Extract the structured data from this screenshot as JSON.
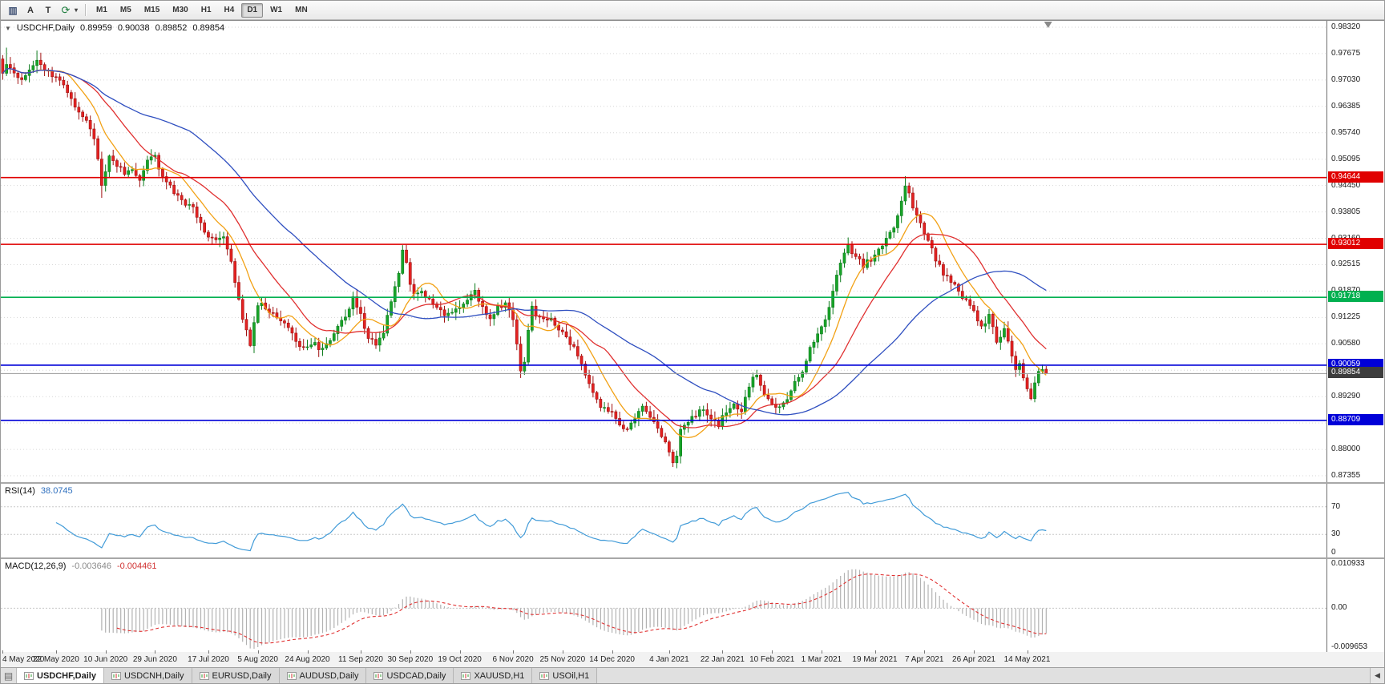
{
  "toolbar": {
    "tools": [
      {
        "name": "chart-bars-icon",
        "glyph": "▥"
      },
      {
        "name": "annotation-a-icon",
        "glyph": "A"
      },
      {
        "name": "text-tool-icon",
        "glyph": "T"
      },
      {
        "name": "refresh-icon",
        "glyph": "⟳"
      },
      {
        "name": "dropdown-caret-icon",
        "glyph": "▾"
      }
    ],
    "timeframes": [
      {
        "label": "M1",
        "active": false
      },
      {
        "label": "M5",
        "active": false
      },
      {
        "label": "M15",
        "active": false
      },
      {
        "label": "M30",
        "active": false
      },
      {
        "label": "H1",
        "active": false
      },
      {
        "label": "H4",
        "active": false
      },
      {
        "label": "D1",
        "active": true
      },
      {
        "label": "W1",
        "active": false
      },
      {
        "label": "MN",
        "active": false
      }
    ]
  },
  "chart": {
    "header": {
      "collapse_glyph": "▼",
      "symbol": "USDCHF,Daily",
      "open": "0.89959",
      "high": "0.90038",
      "low": "0.89852",
      "close": "0.89854"
    }
  },
  "rsi_header": {
    "title": "RSI(14)",
    "value": "38.0745"
  },
  "macd_header": {
    "title": "MACD(12,26,9)",
    "value_main": "-0.003646",
    "value_signal": "-0.004461"
  },
  "tabbar": {
    "menu_glyph": "▤",
    "scroll_left_glyph": "◀"
  },
  "tabs": [
    {
      "label": "USDCHF,Daily",
      "active": true
    },
    {
      "label": "USDCNH,Daily",
      "active": false
    },
    {
      "label": "EURUSD,Daily",
      "active": false
    },
    {
      "label": "AUDUSD,Daily",
      "active": false
    },
    {
      "label": "USDCAD,Daily",
      "active": false
    },
    {
      "label": "XAUUSD,H1",
      "active": false
    },
    {
      "label": "USOil,H1",
      "active": false
    }
  ],
  "chart_data": {
    "type": "candlestick",
    "symbol": "USDCHF",
    "timeframe": "Daily",
    "ohlc_display": {
      "open": 0.89959,
      "high": 0.90038,
      "low": 0.89852,
      "close": 0.89854
    },
    "bid": 0.89854,
    "y_axis": {
      "min": 0.87355,
      "max": 0.9832,
      "ticks": [
        "0.98320",
        "0.97675",
        "0.97030",
        "0.96385",
        "0.95740",
        "0.95095",
        "0.94450",
        "0.93805",
        "0.93160",
        "0.92515",
        "0.91870",
        "0.91225",
        "0.90580",
        "0.89935",
        "0.89290",
        "0.88645",
        "0.88000",
        "0.87355"
      ]
    },
    "x_axis": {
      "bars_total": 275,
      "plot_fraction": 0.79,
      "labels": [
        {
          "i": 0,
          "t": "4 May 2020"
        },
        {
          "i": 14,
          "t": "22 May 2020"
        },
        {
          "i": 27,
          "t": "10 Jun 2020"
        },
        {
          "i": 40,
          "t": "29 Jun 2020"
        },
        {
          "i": 54,
          "t": "17 Jul 2020"
        },
        {
          "i": 67,
          "t": "5 Aug 2020"
        },
        {
          "i": 80,
          "t": "24 Aug 2020"
        },
        {
          "i": 94,
          "t": "11 Sep 2020"
        },
        {
          "i": 107,
          "t": "30 Sep 2020"
        },
        {
          "i": 120,
          "t": "19 Oct 2020"
        },
        {
          "i": 134,
          "t": "6 Nov 2020"
        },
        {
          "i": 147,
          "t": "25 Nov 2020"
        },
        {
          "i": 160,
          "t": "14 Dec 2020"
        },
        {
          "i": 175,
          "t": "4 Jan 2021"
        },
        {
          "i": 189,
          "t": "22 Jan 2021"
        },
        {
          "i": 202,
          "t": "10 Feb 2021"
        },
        {
          "i": 215,
          "t": "1 Mar 2021"
        },
        {
          "i": 229,
          "t": "19 Mar 2021"
        },
        {
          "i": 242,
          "t": "7 Apr 2021"
        },
        {
          "i": 255,
          "t": "26 Apr 2021"
        },
        {
          "i": 269,
          "t": "14 May 2021"
        }
      ]
    },
    "price_path": [
      [
        0,
        0.9718
      ],
      [
        1,
        0.9745
      ],
      [
        3,
        0.9722
      ],
      [
        5,
        0.9705
      ],
      [
        7,
        0.9732
      ],
      [
        9,
        0.9752
      ],
      [
        11,
        0.9728
      ],
      [
        13,
        0.971
      ],
      [
        14,
        0.9716
      ],
      [
        16,
        0.9692
      ],
      [
        18,
        0.9652
      ],
      [
        20,
        0.9625
      ],
      [
        22,
        0.961
      ],
      [
        24,
        0.9562
      ],
      [
        26,
        0.9448
      ],
      [
        27,
        0.9478
      ],
      [
        28,
        0.9512
      ],
      [
        30,
        0.9496
      ],
      [
        32,
        0.9476
      ],
      [
        34,
        0.9482
      ],
      [
        36,
        0.946
      ],
      [
        38,
        0.9506
      ],
      [
        40,
        0.9516
      ],
      [
        42,
        0.9466
      ],
      [
        44,
        0.944
      ],
      [
        46,
        0.9416
      ],
      [
        48,
        0.94
      ],
      [
        50,
        0.9392
      ],
      [
        52,
        0.9352
      ],
      [
        54,
        0.9322
      ],
      [
        56,
        0.931
      ],
      [
        58,
        0.9316
      ],
      [
        60,
        0.9256
      ],
      [
        61,
        0.9212
      ],
      [
        62,
        0.917
      ],
      [
        63,
        0.9122
      ],
      [
        64,
        0.9086
      ],
      [
        65,
        0.906
      ],
      [
        66,
        0.9106
      ],
      [
        67,
        0.9146
      ],
      [
        68,
        0.916
      ],
      [
        70,
        0.9136
      ],
      [
        72,
        0.9128
      ],
      [
        74,
        0.911
      ],
      [
        76,
        0.908
      ],
      [
        78,
        0.9056
      ],
      [
        80,
        0.9046
      ],
      [
        82,
        0.906
      ],
      [
        83,
        0.9038
      ],
      [
        85,
        0.9058
      ],
      [
        87,
        0.9082
      ],
      [
        89,
        0.9112
      ],
      [
        91,
        0.9142
      ],
      [
        92,
        0.9168
      ],
      [
        94,
        0.9128
      ],
      [
        96,
        0.9072
      ],
      [
        98,
        0.9056
      ],
      [
        100,
        0.9088
      ],
      [
        102,
        0.9158
      ],
      [
        104,
        0.9232
      ],
      [
        105,
        0.9284
      ],
      [
        106,
        0.9258
      ],
      [
        107,
        0.9208
      ],
      [
        108,
        0.9174
      ],
      [
        110,
        0.9188
      ],
      [
        112,
        0.9164
      ],
      [
        114,
        0.9148
      ],
      [
        116,
        0.9126
      ],
      [
        118,
        0.9134
      ],
      [
        120,
        0.9148
      ],
      [
        122,
        0.9166
      ],
      [
        124,
        0.9184
      ],
      [
        126,
        0.9148
      ],
      [
        128,
        0.9118
      ],
      [
        130,
        0.9146
      ],
      [
        132,
        0.9156
      ],
      [
        134,
        0.9118
      ],
      [
        135,
        0.9058
      ],
      [
        136,
        0.8992
      ],
      [
        137,
        0.9018
      ],
      [
        138,
        0.9088
      ],
      [
        139,
        0.9148
      ],
      [
        140,
        0.913
      ],
      [
        142,
        0.9116
      ],
      [
        144,
        0.912
      ],
      [
        146,
        0.9098
      ],
      [
        148,
        0.9072
      ],
      [
        150,
        0.905
      ],
      [
        152,
        0.9012
      ],
      [
        154,
        0.8956
      ],
      [
        156,
        0.8918
      ],
      [
        158,
        0.8898
      ],
      [
        160,
        0.8886
      ],
      [
        162,
        0.8862
      ],
      [
        164,
        0.8844
      ],
      [
        166,
        0.888
      ],
      [
        168,
        0.89
      ],
      [
        170,
        0.8882
      ],
      [
        172,
        0.885
      ],
      [
        174,
        0.8818
      ],
      [
        175,
        0.8794
      ],
      [
        176,
        0.8768
      ],
      [
        177,
        0.879
      ],
      [
        178,
        0.8844
      ],
      [
        180,
        0.8868
      ],
      [
        182,
        0.8886
      ],
      [
        184,
        0.89
      ],
      [
        186,
        0.8868
      ],
      [
        188,
        0.886
      ],
      [
        190,
        0.8893
      ],
      [
        192,
        0.891
      ],
      [
        194,
        0.889
      ],
      [
        196,
        0.8956
      ],
      [
        198,
        0.8986
      ],
      [
        200,
        0.8938
      ],
      [
        202,
        0.8906
      ],
      [
        204,
        0.89
      ],
      [
        206,
        0.8926
      ],
      [
        208,
        0.8962
      ],
      [
        210,
        0.8992
      ],
      [
        212,
        0.905
      ],
      [
        214,
        0.908
      ],
      [
        216,
        0.9118
      ],
      [
        218,
        0.9188
      ],
      [
        220,
        0.926
      ],
      [
        222,
        0.9298
      ],
      [
        224,
        0.927
      ],
      [
        226,
        0.925
      ],
      [
        228,
        0.9266
      ],
      [
        230,
        0.9284
      ],
      [
        232,
        0.9318
      ],
      [
        234,
        0.9346
      ],
      [
        236,
        0.9404
      ],
      [
        237,
        0.9446
      ],
      [
        238,
        0.9428
      ],
      [
        239,
        0.9396
      ],
      [
        241,
        0.935
      ],
      [
        243,
        0.9306
      ],
      [
        245,
        0.9266
      ],
      [
        247,
        0.923
      ],
      [
        249,
        0.9208
      ],
      [
        251,
        0.9186
      ],
      [
        253,
        0.916
      ],
      [
        255,
        0.9138
      ],
      [
        256,
        0.9116
      ],
      [
        257,
        0.9096
      ],
      [
        258,
        0.911
      ],
      [
        259,
        0.9126
      ],
      [
        260,
        0.9096
      ],
      [
        261,
        0.906
      ],
      [
        262,
        0.9078
      ],
      [
        263,
        0.9096
      ],
      [
        264,
        0.9066
      ],
      [
        265,
        0.9026
      ],
      [
        266,
        0.8996
      ],
      [
        267,
        0.901
      ],
      [
        268,
        0.898
      ],
      [
        269,
        0.8953
      ],
      [
        270,
        0.893
      ],
      [
        271,
        0.8962
      ],
      [
        272,
        0.899
      ],
      [
        273,
        0.8996
      ],
      [
        274,
        0.89854
      ]
    ],
    "wick_extremes": [
      [
        1,
        "high",
        0.9782
      ],
      [
        9,
        "high",
        0.9775
      ],
      [
        26,
        "low",
        0.9415
      ],
      [
        105,
        "high",
        0.9296
      ],
      [
        136,
        "low",
        0.8978
      ],
      [
        176,
        "low",
        0.8757
      ],
      [
        237,
        "high",
        0.9468
      ],
      [
        270,
        "low",
        0.8929
      ]
    ],
    "last_candle": {
      "o": 0.89959,
      "h": 0.90038,
      "l": 0.89852,
      "c": 0.89854
    },
    "horizontal_lines": [
      {
        "price": 0.94644,
        "label": "0.94644",
        "color": "#e00000"
      },
      {
        "price": 0.93012,
        "label": "0.93012",
        "color": "#e00000"
      },
      {
        "price": 0.91718,
        "label": "0.91718",
        "color": "#00b050"
      },
      {
        "price": 0.90059,
        "label": "0.90059",
        "color": "#0000d8"
      },
      {
        "price": 0.88709,
        "label": "0.88709",
        "color": "#0000d8"
      }
    ],
    "indicators": {
      "moving_averages": [
        {
          "period": 10,
          "color": "#f2a114"
        },
        {
          "period": 21,
          "color": "#e03030"
        },
        {
          "period": 50,
          "color": "#2f4fc0"
        }
      ],
      "rsi": {
        "period": 14,
        "value": 38.0745,
        "levels": [
          70,
          30
        ],
        "axis_labels": [
          {
            "v": 70,
            "t": "70"
          },
          {
            "v": 30,
            "t": "30"
          },
          {
            "v": 0,
            "t": "0"
          }
        ],
        "color": "#419bd8",
        "range": [
          0,
          100
        ]
      },
      "macd": {
        "fast": 12,
        "slow": 26,
        "signal_period": 9,
        "value": -0.003646,
        "signal_value": -0.004461,
        "axis_labels": [
          {
            "v": 0.010933,
            "t": "0.010933"
          },
          {
            "v": 0,
            "t": "0.00"
          },
          {
            "v": -0.009653,
            "t": "-0.009653"
          }
        ],
        "hist_color": "#b2b2b2",
        "signal_color": "#e03030"
      }
    },
    "colors": {
      "up": "#18a428",
      "up_stroke": "#0e7d1e",
      "down": "#e32222",
      "down_stroke": "#a01010",
      "grid": "#d6d6d6",
      "bid_line": "#9a9a9a",
      "bid_badge": "#3d3d3d",
      "background": "#ffffff"
    }
  }
}
